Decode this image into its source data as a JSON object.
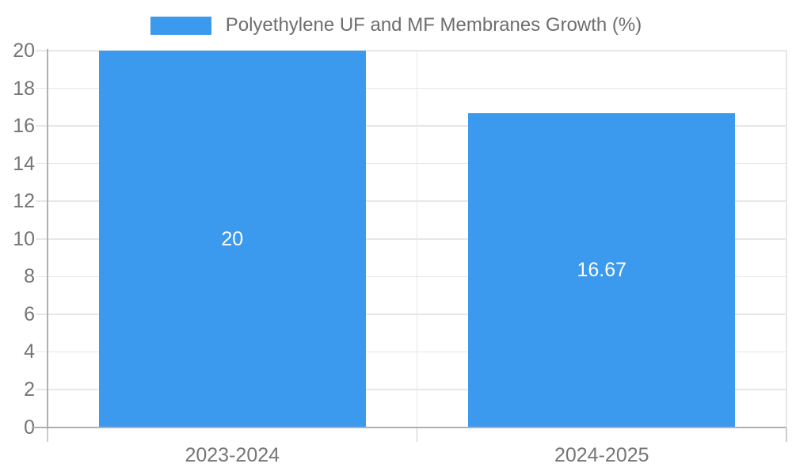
{
  "legend": {
    "label": "Polyethylene UF and MF Membranes Growth (%)"
  },
  "chart_data": {
    "type": "bar",
    "title": "Polyethylene UF and MF Membranes Growth (%)",
    "series_name": "Polyethylene UF and MF Membranes Growth (%)",
    "categories": [
      "2023-2024",
      "2024-2025"
    ],
    "values": [
      20,
      16.67
    ],
    "value_labels": [
      "20",
      "16.67"
    ],
    "xlabel": "",
    "ylabel": "",
    "ylim": [
      0,
      20
    ],
    "yticks": [
      0,
      2,
      4,
      6,
      8,
      10,
      12,
      14,
      16,
      18,
      20
    ],
    "grid": true,
    "legend_position": "top-center",
    "value_label_position": "inside-center"
  },
  "colors": {
    "bar": "#3b99ee",
    "legend_text": "#6e6e6e",
    "axis_label": "#757575",
    "gridline": "#e7e7e7",
    "axis_line": "#b0b0b0",
    "minor_tick": "#cccccc",
    "value_label": "#ffffff",
    "background": "#ffffff"
  }
}
